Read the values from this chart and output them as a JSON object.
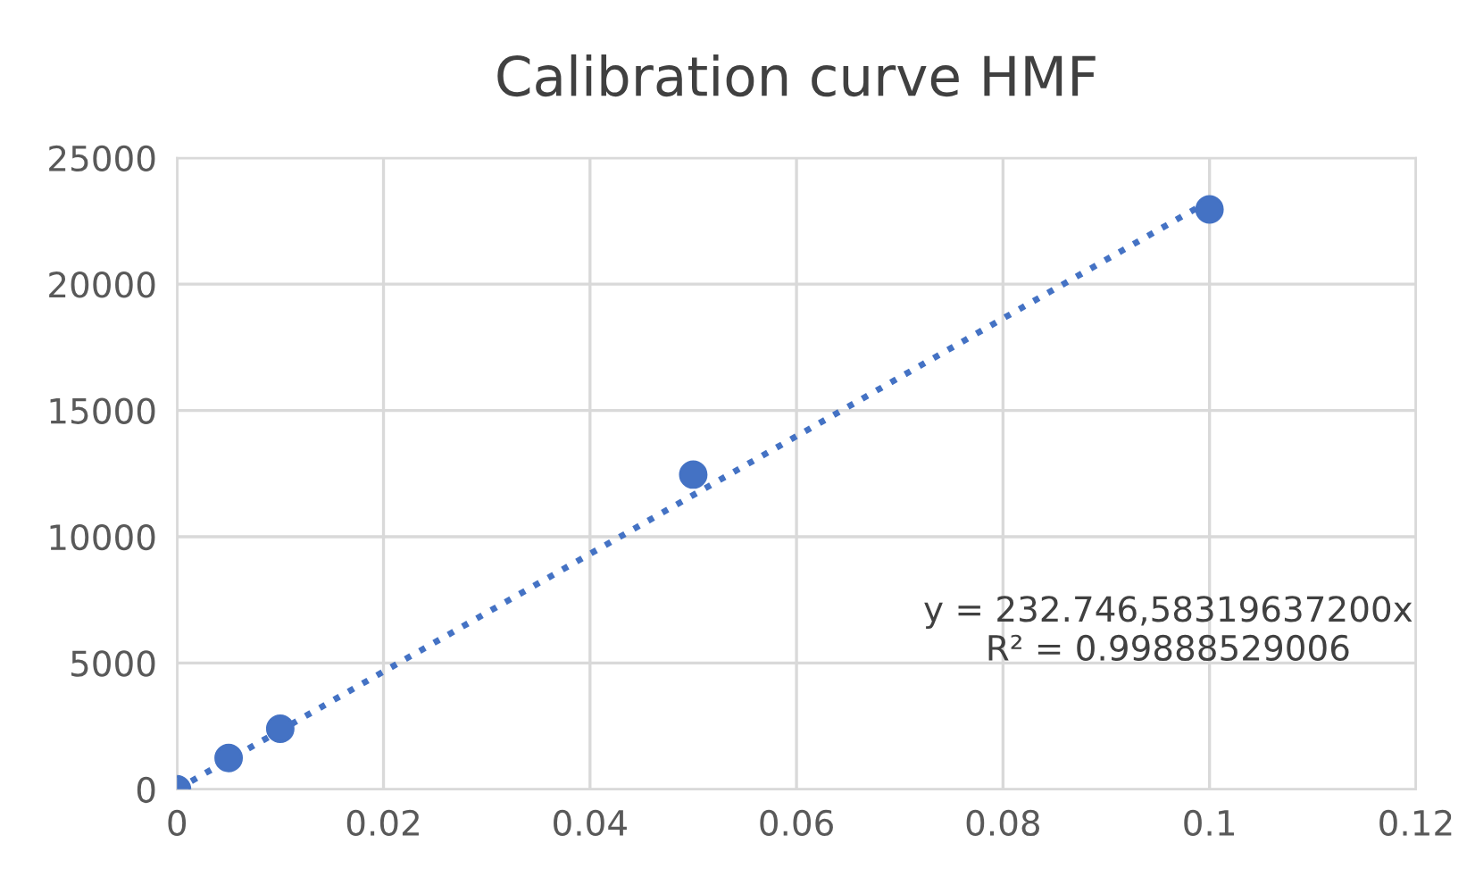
{
  "chart_data": {
    "type": "scatter",
    "title": "Calibration curve HMF",
    "series": [
      {
        "color": "#4472c4",
        "marker": "circle",
        "x": [
          0,
          0.005,
          0.01,
          0.05,
          0.1
        ],
        "values": [
          0,
          1240,
          2400,
          12460,
          22960
        ]
      },
      {
        "type": "line",
        "color": "#4472c4",
        "marker": "none",
        "line_style": "dotted",
        "x": [
          0,
          0.1
        ],
        "values": [
          0,
          23300
        ]
      }
    ],
    "xlim": [
      0,
      0.12
    ],
    "xticks": [
      0,
      0.02,
      0.04,
      0.06,
      0.08,
      0.1,
      0.12
    ],
    "ylim": [
      0,
      25000
    ],
    "yticks": [
      0,
      5000,
      10000,
      15000,
      20000,
      25000
    ],
    "grid": true,
    "annotations": [
      "y = 232.746,58319637200x\nR² = 0.99888529006"
    ]
  }
}
